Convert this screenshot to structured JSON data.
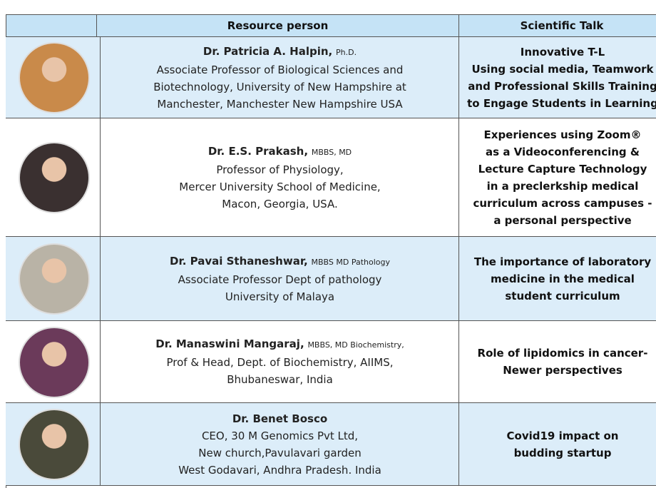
{
  "table": {
    "headers": [
      "Resource person",
      "Scientific Talk"
    ],
    "rows": [
      {
        "name": "Dr. Patricia A. Halpin,",
        "credentials": "Ph.D.",
        "details": [
          "Associate Professor of Biological Sciences and",
          "Biotechnology, University of New Hampshire at",
          "Manchester, Manchester New Hampshire USA"
        ],
        "talk": [
          "Innovative T-L",
          "Using social media, Teamwork",
          "and Professional Skills Training",
          "to Engage Students in Learning"
        ]
      },
      {
        "name": "Dr. E.S. Prakash,",
        "credentials": "MBBS, MD",
        "details": [
          "Professor of Physiology,",
          "Mercer University School of Medicine,",
          "Macon, Georgia, USA."
        ],
        "talk": [
          "Experiences using Zoom®",
          "as a Videoconferencing &",
          "Lecture Capture Technology",
          "in a preclerkship medical",
          "curriculum across campuses -",
          "a personal perspective"
        ]
      },
      {
        "name": "Dr. Pavai Sthaneshwar,",
        "credentials": "MBBS  MD Pathology",
        "details": [
          "Associate Professor Dept of pathology",
          "University of  Malaya"
        ],
        "talk": [
          "The importance of laboratory",
          "medicine in the medical",
          "student curriculum"
        ]
      },
      {
        "name": "Dr. Manaswini Mangaraj,",
        "credentials": "MBBS, MD Biochemistry,",
        "details": [
          "Prof & Head, Dept. of Biochemistry, AIIMS,",
          "Bhubaneswar, India"
        ],
        "talk": [
          "Role of lipidomics in cancer-",
          "Newer perspectives"
        ]
      },
      {
        "name": "Dr. Benet Bosco",
        "credentials": null,
        "details": [
          "CEO, 30 M Genomics Pvt Ltd,",
          "New church,Pavulavari garden",
          "West Godavari, Andhra Pradesh. India"
        ],
        "talk": [
          "Covid19 impact on",
          "budding startup"
        ]
      }
    ]
  }
}
